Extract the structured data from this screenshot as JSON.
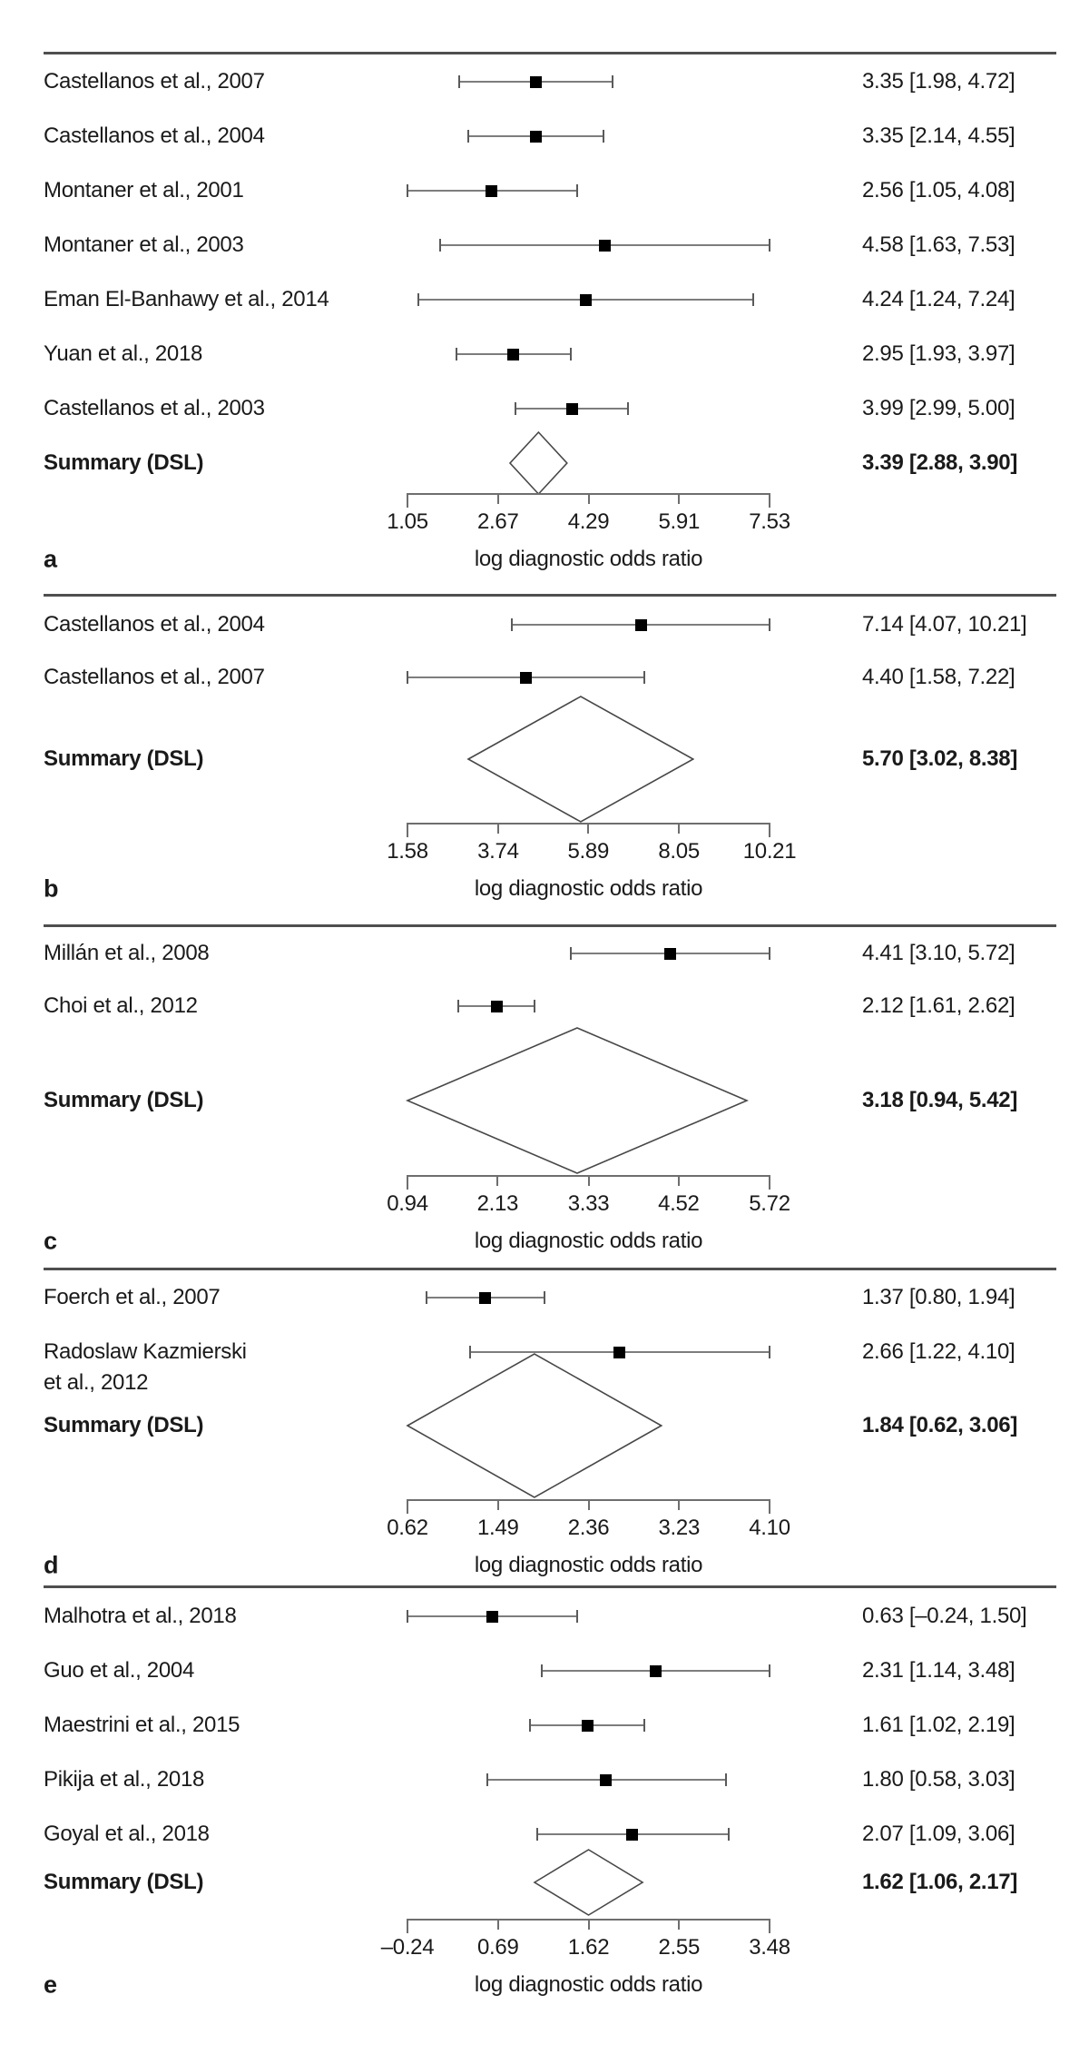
{
  "chart_data": [
    {
      "type": "forest",
      "panel_letter": "a",
      "xlabel": "log diagnostic odds ratio",
      "tick_labels": [
        "1.05",
        "2.67",
        "4.29",
        "5.91",
        "7.53"
      ],
      "tick_values": [
        1.05,
        2.67,
        4.29,
        5.91,
        7.53
      ],
      "axis_range": [
        1.05,
        7.53
      ],
      "studies": [
        {
          "label": "Castellanos et al., 2007",
          "est": 3.35,
          "lo": 1.98,
          "hi": 4.72,
          "value_text": "3.35 [1.98, 4.72]"
        },
        {
          "label": "Castellanos et al., 2004",
          "est": 3.35,
          "lo": 2.14,
          "hi": 4.55,
          "value_text": "3.35 [2.14, 4.55]"
        },
        {
          "label": "Montaner et al., 2001",
          "est": 2.56,
          "lo": 1.05,
          "hi": 4.08,
          "value_text": "2.56 [1.05, 4.08]"
        },
        {
          "label": "Montaner et al., 2003",
          "est": 4.58,
          "lo": 1.63,
          "hi": 7.53,
          "value_text": "4.58 [1.63, 7.53]"
        },
        {
          "label": "Eman El-Banhawy et al., 2014",
          "est": 4.24,
          "lo": 1.24,
          "hi": 7.24,
          "value_text": "4.24 [1.24, 7.24]"
        },
        {
          "label": "Yuan et al., 2018",
          "est": 2.95,
          "lo": 1.93,
          "hi": 3.97,
          "value_text": "2.95 [1.93, 3.97]"
        },
        {
          "label": "Castellanos et al., 2003",
          "est": 3.99,
          "lo": 2.99,
          "hi": 5.0,
          "value_text": "3.99 [2.99, 5.00]"
        }
      ],
      "summary": {
        "label": "Summary (DSL)",
        "est": 3.39,
        "lo": 2.88,
        "hi": 3.9,
        "value_text": "3.39 [2.88, 3.90]"
      }
    },
    {
      "type": "forest",
      "panel_letter": "b",
      "xlabel": "log diagnostic odds ratio",
      "tick_labels": [
        "1.58",
        "3.74",
        "5.89",
        "8.05",
        "10.21"
      ],
      "tick_values": [
        1.58,
        3.74,
        5.89,
        8.05,
        10.21
      ],
      "axis_range": [
        1.58,
        10.21
      ],
      "studies": [
        {
          "label": "Castellanos et al., 2004",
          "est": 7.14,
          "lo": 4.07,
          "hi": 10.21,
          "value_text": "7.14 [4.07, 10.21]"
        },
        {
          "label": "Castellanos et al., 2007",
          "est": 4.4,
          "lo": 1.58,
          "hi": 7.22,
          "value_text": "4.40 [1.58, 7.22]"
        }
      ],
      "summary": {
        "label": "Summary (DSL)",
        "est": 5.7,
        "lo": 3.02,
        "hi": 8.38,
        "value_text": "5.70 [3.02, 8.38]"
      }
    },
    {
      "type": "forest",
      "panel_letter": "c",
      "xlabel": "log diagnostic odds ratio",
      "tick_labels": [
        "0.94",
        "2.13",
        "3.33",
        "4.52",
        "5.72"
      ],
      "tick_values": [
        0.94,
        2.13,
        3.33,
        4.52,
        5.72
      ],
      "axis_range": [
        0.94,
        5.72
      ],
      "studies": [
        {
          "label": "Millán et al., 2008",
          "est": 4.41,
          "lo": 3.1,
          "hi": 5.72,
          "value_text": "4.41 [3.10, 5.72]"
        },
        {
          "label": "Choi et al., 2012",
          "est": 2.12,
          "lo": 1.61,
          "hi": 2.62,
          "value_text": "2.12 [1.61, 2.62]"
        }
      ],
      "summary": {
        "label": "Summary (DSL)",
        "est": 3.18,
        "lo": 0.94,
        "hi": 5.42,
        "value_text": "3.18 [0.94, 5.42]"
      }
    },
    {
      "type": "forest",
      "panel_letter": "d",
      "xlabel": "log diagnostic odds ratio",
      "tick_labels": [
        "0.62",
        "1.49",
        "2.36",
        "3.23",
        "4.10"
      ],
      "tick_values": [
        0.62,
        1.49,
        2.36,
        3.23,
        4.1
      ],
      "axis_range": [
        0.62,
        4.1
      ],
      "studies": [
        {
          "label": "Foerch et al., 2007",
          "est": 1.37,
          "lo": 0.8,
          "hi": 1.94,
          "value_text": "1.37 [0.80, 1.94]"
        },
        {
          "label": "Radoslaw Kazmierski\net al., 2012",
          "est": 2.66,
          "lo": 1.22,
          "hi": 4.1,
          "value_text": "2.66 [1.22, 4.10]"
        }
      ],
      "summary": {
        "label": "Summary (DSL)",
        "est": 1.84,
        "lo": 0.62,
        "hi": 3.06,
        "value_text": "1.84 [0.62, 3.06]"
      }
    },
    {
      "type": "forest",
      "panel_letter": "e",
      "xlabel": "log diagnostic odds ratio",
      "tick_labels": [
        "–0.24",
        "0.69",
        "1.62",
        "2.55",
        "3.48"
      ],
      "tick_values": [
        -0.24,
        0.69,
        1.62,
        2.55,
        3.48
      ],
      "axis_range": [
        -0.24,
        3.48
      ],
      "studies": [
        {
          "label": "Malhotra et al., 2018",
          "est": 0.63,
          "lo": -0.24,
          "hi": 1.5,
          "value_text": "0.63 [–0.24, 1.50]"
        },
        {
          "label": "Guo et al., 2004",
          "est": 2.31,
          "lo": 1.14,
          "hi": 3.48,
          "value_text": "2.31 [1.14, 3.48]"
        },
        {
          "label": "Maestrini et al., 2015",
          "est": 1.61,
          "lo": 1.02,
          "hi": 2.19,
          "value_text": "1.61 [1.02, 2.19]"
        },
        {
          "label": "Pikija et al., 2018",
          "est": 1.8,
          "lo": 0.58,
          "hi": 3.03,
          "value_text": "1.80 [0.58, 3.03]"
        },
        {
          "label": "Goyal et al., 2018",
          "est": 2.07,
          "lo": 1.09,
          "hi": 3.06,
          "value_text": "2.07 [1.09, 3.06]"
        }
      ],
      "summary": {
        "label": "Summary (DSL)",
        "est": 1.62,
        "lo": 1.06,
        "hi": 2.17,
        "value_text": "1.62 [1.06, 2.17]"
      }
    }
  ]
}
